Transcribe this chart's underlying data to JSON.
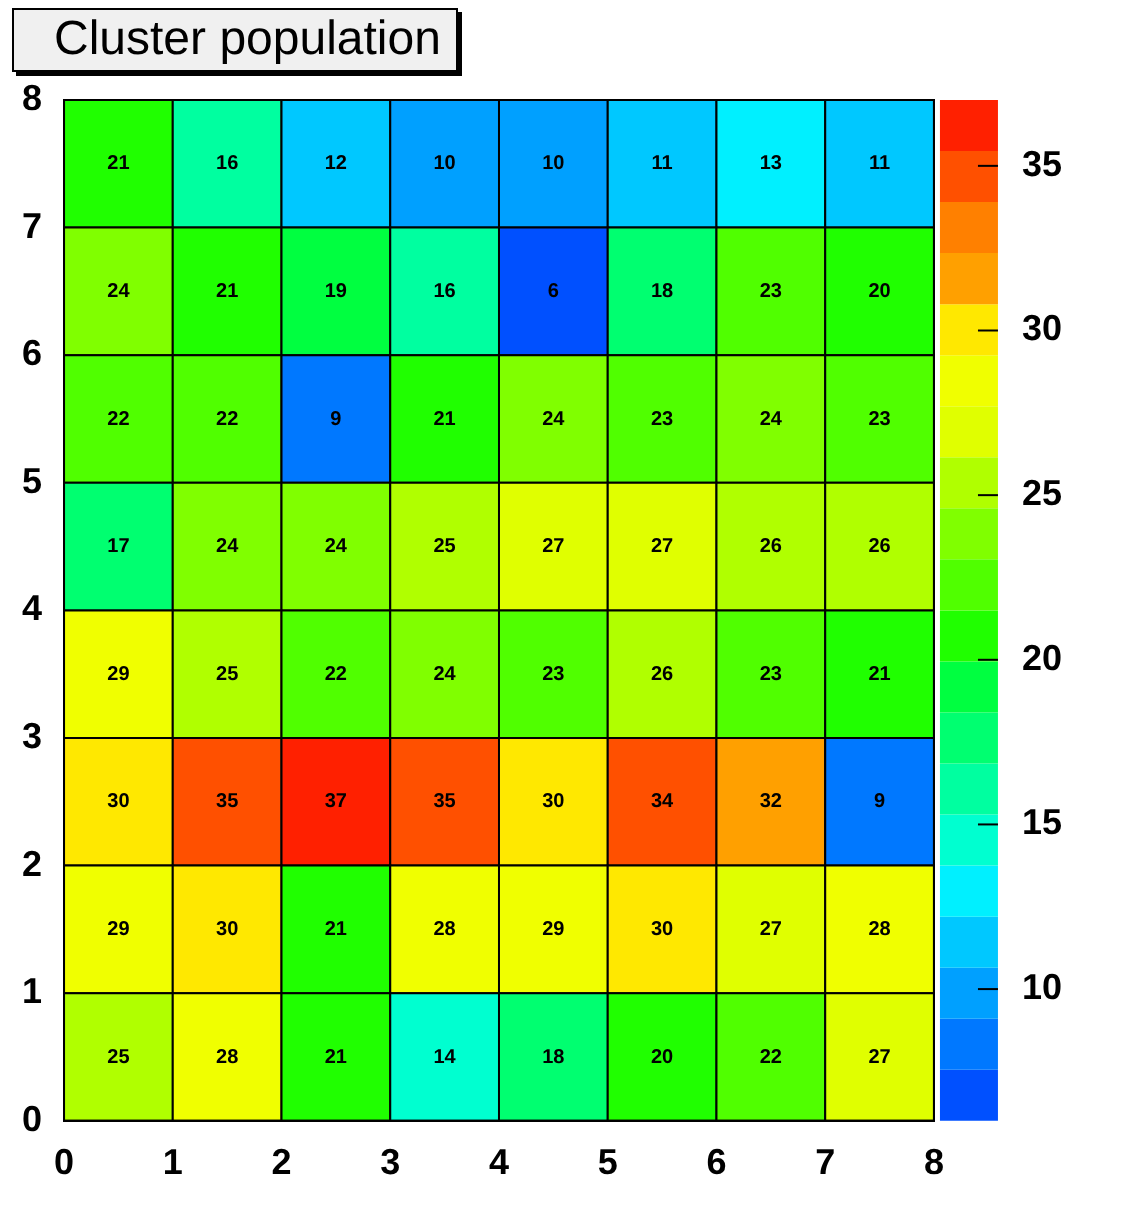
{
  "chart_data": {
    "type": "heatmap",
    "title": "Cluster population",
    "xlim": [
      0,
      8
    ],
    "xticks": [
      0,
      1,
      2,
      3,
      4,
      5,
      6,
      7,
      8
    ],
    "ylim": [
      0,
      8
    ],
    "yticks": [
      0,
      1,
      2,
      3,
      4,
      5,
      6,
      7,
      8
    ],
    "cells": [
      [
        21,
        16,
        12,
        10,
        10,
        11,
        13,
        11
      ],
      [
        24,
        21,
        19,
        16,
        6,
        18,
        23,
        20
      ],
      [
        22,
        22,
        9,
        21,
        24,
        23,
        24,
        23
      ],
      [
        17,
        24,
        24,
        25,
        27,
        27,
        26,
        26
      ],
      [
        29,
        25,
        22,
        24,
        23,
        26,
        23,
        21
      ],
      [
        30,
        35,
        37,
        35,
        30,
        34,
        32,
        9
      ],
      [
        29,
        30,
        21,
        28,
        29,
        30,
        27,
        28
      ],
      [
        25,
        28,
        21,
        14,
        18,
        20,
        22,
        27
      ]
    ],
    "clim": [
      6,
      37
    ],
    "cticks": [
      10,
      15,
      20,
      25,
      30,
      35
    ],
    "colors": [
      "#0050ff",
      "#0078ff",
      "#00a0ff",
      "#00c8ff",
      "#00f0ff",
      "#00ffd0",
      "#00ffa0",
      "#00ff70",
      "#00ff40",
      "#20ff00",
      "#50ff00",
      "#80ff00",
      "#b0ff00",
      "#e0ff00",
      "#f0ff00",
      "#ffe800",
      "#ffa000",
      "#ff8000",
      "#ff5000",
      "#ff2000"
    ],
    "data_labels": true
  }
}
